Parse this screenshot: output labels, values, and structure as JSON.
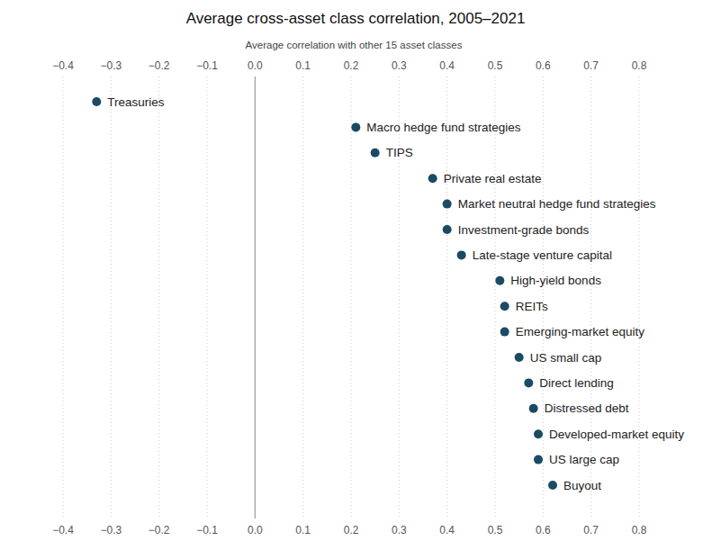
{
  "chart_data": {
    "type": "dot",
    "orientation": "horizontal",
    "title": "Average cross-asset class correlation, 2005–2021",
    "xlabel": "Average correlation with other 15 asset classes",
    "categories": [
      "Treasuries",
      "Macro hedge fund strategies",
      "TIPS",
      "Private real estate",
      "Market neutral hedge fund strategies",
      "Investment-grade bonds",
      "Late-stage venture capital",
      "High-yield bonds",
      "REITs",
      "Emerging-market equity",
      "US small cap",
      "Direct lending",
      "Distressed debt",
      "Developed-market equity",
      "US large cap",
      "Buyout"
    ],
    "values": [
      -0.33,
      0.21,
      0.25,
      0.37,
      0.4,
      0.4,
      0.43,
      0.51,
      0.52,
      0.52,
      0.55,
      0.57,
      0.58,
      0.59,
      0.59,
      0.62
    ],
    "color": "#1b4a65",
    "xlim": [
      -0.4,
      0.8
    ],
    "xticks": [
      {
        "value": -0.4,
        "label": "−0.4"
      },
      {
        "value": -0.3,
        "label": "−0.3"
      },
      {
        "value": -0.2,
        "label": "−0.2"
      },
      {
        "value": -0.1,
        "label": "−0.1"
      },
      {
        "value": 0,
        "label": "0.0"
      },
      0.1,
      0.2,
      0.3,
      0.4,
      0.5,
      0.6,
      0.7,
      0.8
    ],
    "grid": true
  }
}
